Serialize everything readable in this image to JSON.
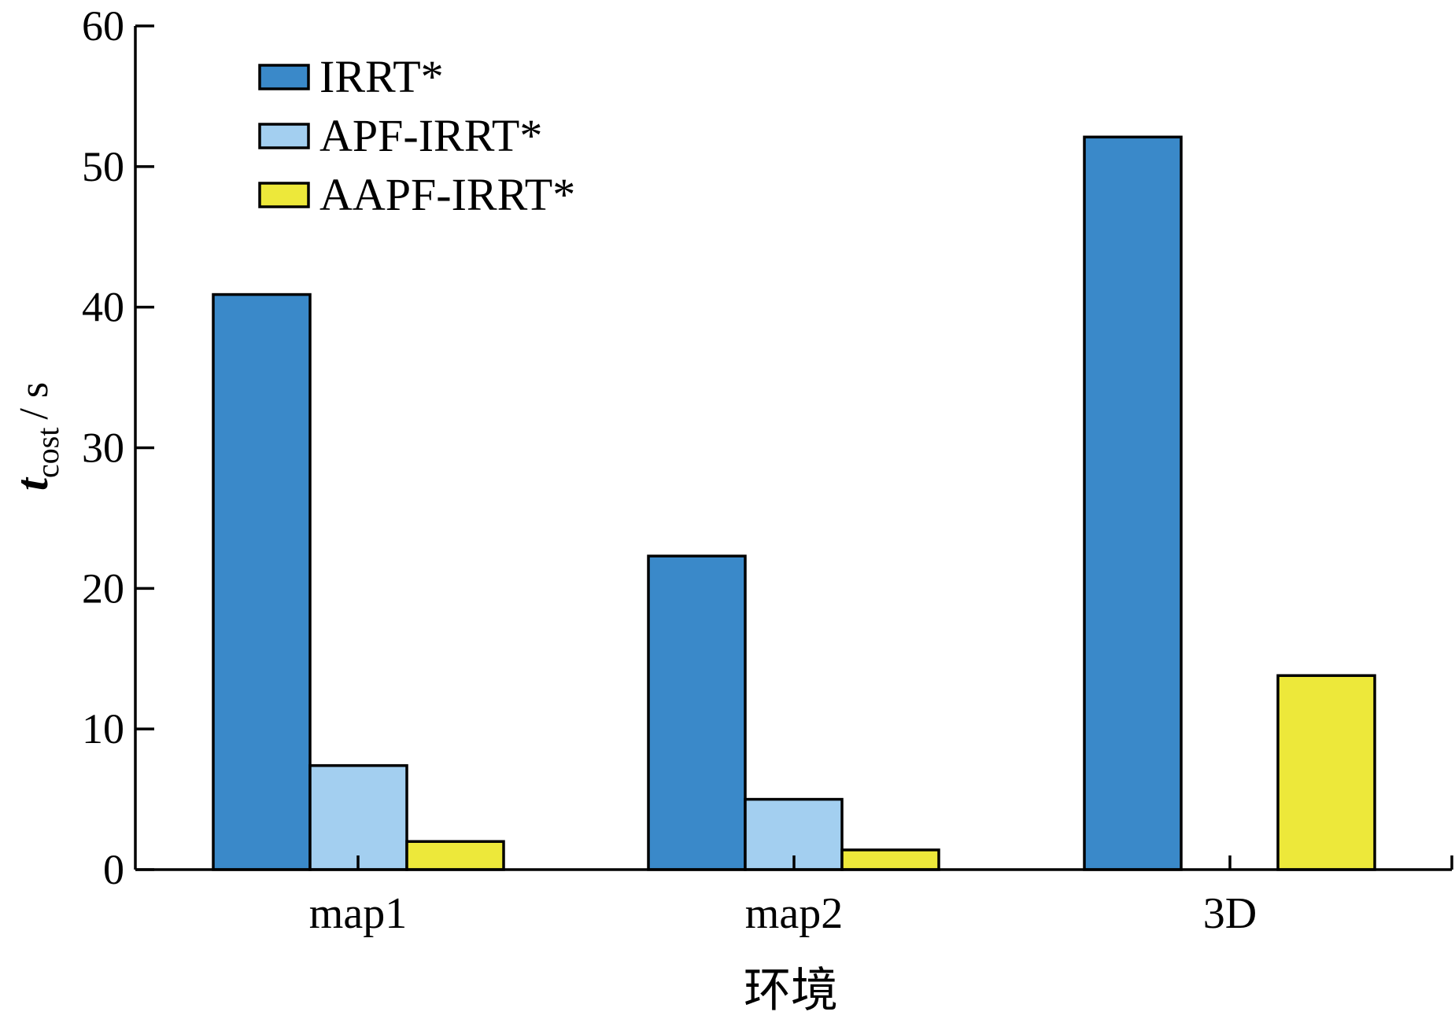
{
  "chart_data": {
    "type": "bar",
    "title": "",
    "xlabel": "环境",
    "ylabel": {
      "main": "t",
      "sub": "cost",
      "unit": "/ s"
    },
    "categories": [
      "map1",
      "map2",
      "3D"
    ],
    "ylim": [
      0,
      60
    ],
    "yticks": [
      0,
      10,
      20,
      30,
      40,
      50,
      60
    ],
    "series": [
      {
        "name": "IRRT*",
        "color": "#3a89c9",
        "values": [
          40.9,
          22.3,
          52.1
        ]
      },
      {
        "name": "APF-IRRT*",
        "color": "#a3cff0",
        "values": [
          7.4,
          5.0,
          null
        ]
      },
      {
        "name": "AAPF-IRRT*",
        "color": "#ede83a",
        "values": [
          2.0,
          1.4,
          13.8
        ]
      }
    ],
    "legend_position": "top-left",
    "grid": false
  }
}
